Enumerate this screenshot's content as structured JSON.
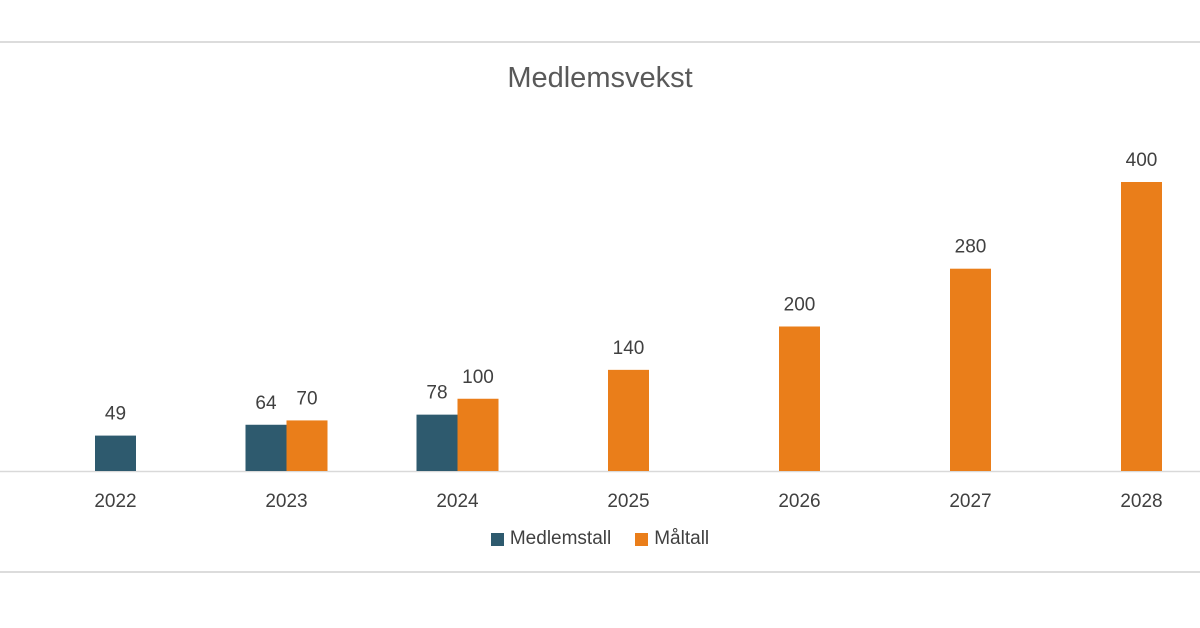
{
  "chart_data": {
    "type": "bar",
    "title": "Medlemsvekst",
    "categories": [
      "2022",
      "2023",
      "2024",
      "2025",
      "2026",
      "2027",
      "2028"
    ],
    "series": [
      {
        "name": "Medlemstall",
        "values": [
          49,
          64,
          78,
          null,
          null,
          null,
          null
        ],
        "color": "#2e5a6e"
      },
      {
        "name": "Måltall",
        "values": [
          null,
          70,
          100,
          140,
          200,
          280,
          400
        ],
        "color": "#ea7e1a"
      }
    ],
    "data_labels": true,
    "legend_position": "bottom",
    "grid": false,
    "ylim": [
      0,
      400
    ]
  }
}
